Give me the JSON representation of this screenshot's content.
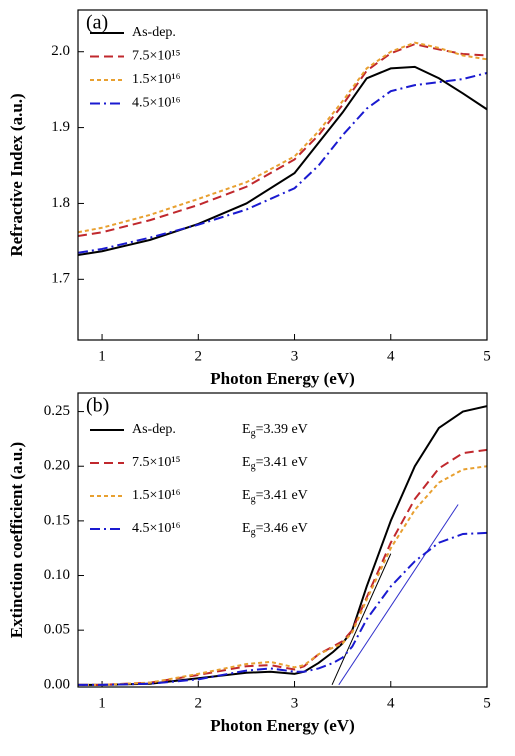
{
  "chart_data": [
    {
      "type": "line",
      "panel_label": "(a)",
      "x_label": "Photon Energy (eV)",
      "y_label": "Refractive Index (a.u.)",
      "x": [
        0.75,
        1,
        1.5,
        2,
        2.5,
        3,
        3.25,
        3.5,
        3.75,
        4,
        4.25,
        4.5,
        4.75,
        5
      ],
      "xlim": [
        0.75,
        5
      ],
      "xticks": [
        1,
        2,
        3,
        4,
        5
      ],
      "ylim": [
        1.62,
        2.055
      ],
      "yticks": [
        1.7,
        1.8,
        1.9,
        {
          "value": 2.0,
          "label": "2.0"
        }
      ],
      "legend": "upper left",
      "series": [
        {
          "name": "As-dep.",
          "color": "#000000",
          "style": "solid",
          "values": [
            1.732,
            1.737,
            1.752,
            1.773,
            1.8,
            1.84,
            1.88,
            1.92,
            1.965,
            1.978,
            1.98,
            1.965,
            1.945,
            1.924
          ]
        },
        {
          "name": "7.5×10¹⁵",
          "color": "#c0282d",
          "style": "dashed",
          "values": [
            1.757,
            1.762,
            1.778,
            1.798,
            1.822,
            1.858,
            1.89,
            1.93,
            1.975,
            1.998,
            2.01,
            2.003,
            1.997,
            1.995
          ]
        },
        {
          "name": "1.5×10¹⁶",
          "color": "#e8a030",
          "style": "dotted",
          "values": [
            1.762,
            1.768,
            1.785,
            1.806,
            1.828,
            1.862,
            1.895,
            1.935,
            1.978,
            2.0,
            2.012,
            2.005,
            1.995,
            1.99
          ]
        },
        {
          "name": "4.5×10¹⁶",
          "color": "#1a1ad0",
          "style": "dashdot",
          "values": [
            1.735,
            1.74,
            1.755,
            1.772,
            1.792,
            1.82,
            1.85,
            1.89,
            1.925,
            1.948,
            1.956,
            1.96,
            1.964,
            1.972
          ]
        }
      ]
    },
    {
      "type": "line",
      "panel_label": "(b)",
      "x_label": "Photon Energy (eV)",
      "y_label": "Extinction coefficient (a.u.)",
      "x": [
        0.75,
        1,
        1.5,
        2,
        2.5,
        2.75,
        3,
        3.1,
        3.25,
        3.4,
        3.5,
        3.6,
        3.75,
        4,
        4.25,
        4.5,
        4.75,
        5
      ],
      "xlim": [
        0.75,
        5
      ],
      "xticks": [
        1,
        2,
        3,
        4,
        5
      ],
      "ylim": [
        -0.002,
        0.267
      ],
      "yticks": [
        {
          "value": 0,
          "label": "0.00"
        },
        0.05,
        {
          "value": 0.1,
          "label": "0.10"
        },
        0.15,
        {
          "value": 0.2,
          "label": "0.20"
        },
        0.25
      ],
      "legend": "upper left",
      "series": [
        {
          "name": "As-dep.",
          "gap_symbol": "E",
          "gap_subscript": "g",
          "gap_text": "=3.39 eV",
          "color": "#000000",
          "style": "solid",
          "values": [
            0,
            0,
            0.001,
            0.006,
            0.011,
            0.012,
            0.01,
            0.012,
            0.02,
            0.03,
            0.038,
            0.05,
            0.09,
            0.15,
            0.2,
            0.235,
            0.25,
            0.255
          ]
        },
        {
          "name": "7.5×10¹⁵",
          "gap_symbol": "E",
          "gap_subscript": "g",
          "gap_text": "=3.41 eV",
          "color": "#c0282d",
          "style": "dashed",
          "values": [
            0,
            0,
            0.002,
            0.009,
            0.017,
            0.018,
            0.014,
            0.017,
            0.028,
            0.035,
            0.04,
            0.05,
            0.08,
            0.13,
            0.17,
            0.198,
            0.212,
            0.215
          ]
        },
        {
          "name": "1.5×10¹⁶",
          "gap_symbol": "E",
          "gap_subscript": "g",
          "gap_text": "=3.41 eV",
          "color": "#e8a030",
          "style": "dotted",
          "values": [
            0,
            0,
            0.002,
            0.01,
            0.019,
            0.021,
            0.016,
            0.018,
            0.028,
            0.034,
            0.038,
            0.048,
            0.078,
            0.125,
            0.16,
            0.185,
            0.197,
            0.2
          ]
        },
        {
          "name": "4.5×10¹⁶",
          "gap_symbol": "E",
          "gap_subscript": "g",
          "gap_text": "=3.46 eV",
          "color": "#1a1ad0",
          "style": "dashdot",
          "values": [
            0,
            0,
            0.001,
            0.005,
            0.013,
            0.015,
            0.012,
            0.012,
            0.015,
            0.02,
            0.025,
            0.035,
            0.06,
            0.09,
            0.113,
            0.13,
            0.138,
            0.139
          ]
        }
      ],
      "fit_lines": [
        {
          "color": "#000000",
          "x": [
            3.39,
            4.0
          ],
          "values": [
            0,
            0.12
          ]
        },
        {
          "color": "#3333cc",
          "x": [
            3.46,
            4.7
          ],
          "values": [
            0,
            0.165
          ]
        }
      ]
    }
  ]
}
